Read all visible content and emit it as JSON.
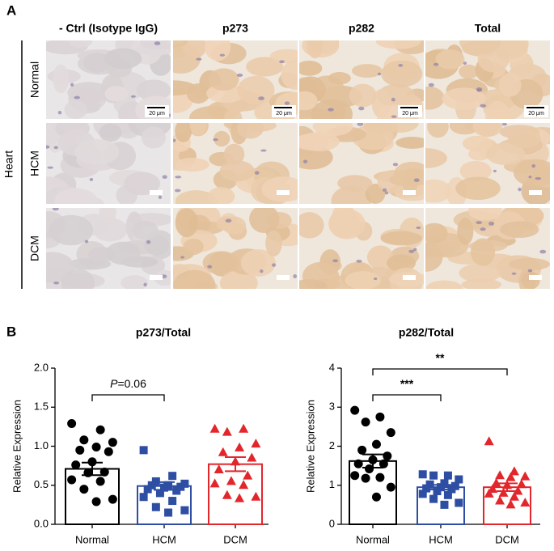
{
  "panel_a": {
    "label": "A",
    "columns": [
      "- Ctrl (Isotype IgG)",
      "p273",
      "p282",
      "Total"
    ],
    "rows": [
      "Normal",
      "HCM",
      "DCM"
    ],
    "tissue": "Heart",
    "scale_bar": "20 μm"
  },
  "panel_b": {
    "label": "B"
  },
  "chart_data": [
    {
      "type": "bar",
      "title": "p273/Total",
      "y_label": "Relative Expression",
      "categories": [
        "Normal",
        "HCM",
        "DCM"
      ],
      "values": [
        0.71,
        0.49,
        0.77
      ],
      "errors": [
        0.08,
        0.05,
        0.09
      ],
      "colors": [
        "#000000",
        "#2e4ea3",
        "#e3262b"
      ],
      "markers": [
        "circle",
        "square",
        "triangle"
      ],
      "points": [
        [
          1.29,
          1.21,
          1.08,
          1.05,
          0.99,
          0.95,
          0.93,
          0.8,
          0.76,
          0.67,
          0.66,
          0.57,
          0.55,
          0.45,
          0.32,
          0.29
        ],
        [
          0.95,
          0.62,
          0.55,
          0.52,
          0.5,
          0.5,
          0.48,
          0.47,
          0.45,
          0.43,
          0.4,
          0.35,
          0.3,
          0.22,
          0.18,
          0.15
        ],
        [
          1.22,
          1.22,
          1.18,
          1.03,
          0.98,
          0.92,
          0.85,
          0.8,
          0.7,
          0.62,
          0.55,
          0.52,
          0.5,
          0.37,
          0.35,
          0.33
        ]
      ],
      "ylim": [
        0,
        2
      ],
      "yticks": [
        {
          "value": 0,
          "label": "0.0"
        },
        0.5,
        {
          "value": 1,
          "label": "1.0"
        },
        1.5,
        {
          "value": 2,
          "label": "2.0"
        }
      ],
      "comparisons": [
        {
          "from": 0,
          "to": 1,
          "label_italic": "P",
          "label": "=0.06"
        }
      ]
    },
    {
      "type": "bar",
      "title": "p282/Total",
      "y_label": "Relative Expression",
      "categories": [
        "Normal",
        "HCM",
        "DCM"
      ],
      "values": [
        1.62,
        0.95,
        0.95
      ],
      "errors": [
        0.17,
        0.06,
        0.1
      ],
      "colors": [
        "#000000",
        "#2e4ea3",
        "#e3262b"
      ],
      "markers": [
        "circle",
        "square",
        "triangle"
      ],
      "points": [
        [
          2.92,
          2.75,
          2.62,
          2.35,
          2.05,
          1.9,
          1.75,
          1.65,
          1.55,
          1.55,
          1.42,
          1.25,
          1.2,
          1.18,
          0.95,
          0.7
        ],
        [
          1.28,
          1.25,
          1.25,
          1.15,
          1.05,
          1.02,
          0.98,
          0.95,
          0.92,
          0.9,
          0.85,
          0.78,
          0.75,
          0.65,
          0.55,
          0.5
        ],
        [
          2.12,
          1.35,
          1.25,
          1.22,
          1.2,
          1.05,
          1.02,
          1.0,
          0.9,
          0.85,
          0.8,
          0.78,
          0.7,
          0.6,
          0.55,
          0.5
        ]
      ],
      "ylim": [
        0,
        4
      ],
      "yticks": [
        0,
        1,
        2,
        3,
        4
      ],
      "comparisons": [
        {
          "from": 0,
          "to": 1,
          "label": "***"
        },
        {
          "from": 0,
          "to": 2,
          "label": "**"
        }
      ]
    }
  ]
}
